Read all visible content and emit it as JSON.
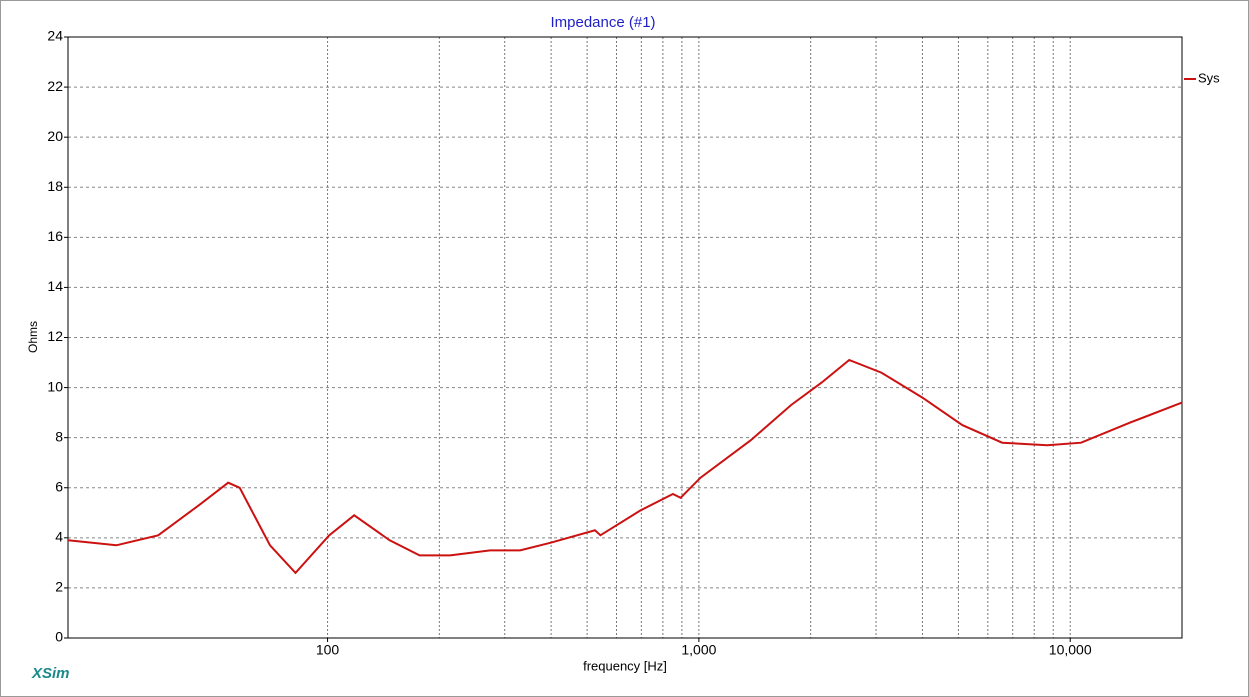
{
  "chart_data": {
    "type": "line",
    "title": "Impedance (#1)",
    "x_label": "frequency [Hz]",
    "y_label": "Ohms",
    "watermark": "XSim",
    "x": [
      20,
      27,
      35,
      45,
      54,
      58,
      70,
      82,
      101,
      118,
      147,
      177,
      214,
      274,
      330,
      398,
      525,
      543,
      697,
      851,
      893,
      1010,
      1380,
      1770,
      2140,
      2540,
      3100,
      4000,
      5120,
      6560,
      8670,
      10700,
      14500,
      20000
    ],
    "series": [
      {
        "name": "Sys",
        "color": "#cc1111",
        "values": [
          3.9,
          3.7,
          4.1,
          5.3,
          6.2,
          6.0,
          3.7,
          2.6,
          4.1,
          4.9,
          3.9,
          3.3,
          3.3,
          3.5,
          3.5,
          3.8,
          4.3,
          4.1,
          5.1,
          5.75,
          5.6,
          6.4,
          7.9,
          9.3,
          10.2,
          11.1,
          10.6,
          9.6,
          8.5,
          7.8,
          7.7,
          7.8,
          8.6,
          9.4
        ]
      }
    ],
    "xlim": [
      20,
      20000
    ],
    "x_log": true,
    "xticks": [
      100,
      {
        "value": 1000,
        "label": "1,000"
      },
      {
        "value": 10000,
        "label": "10,000"
      }
    ],
    "xgrid": [
      100,
      200,
      300,
      400,
      500,
      600,
      700,
      800,
      900,
      1000,
      2000,
      3000,
      4000,
      5000,
      6000,
      7000,
      8000,
      9000,
      10000
    ],
    "ylim": [
      0,
      24
    ],
    "yticks": [
      0,
      2,
      4,
      6,
      8,
      10,
      12,
      14,
      16,
      18,
      20,
      22,
      24
    ],
    "grid": true,
    "legend": "right"
  }
}
